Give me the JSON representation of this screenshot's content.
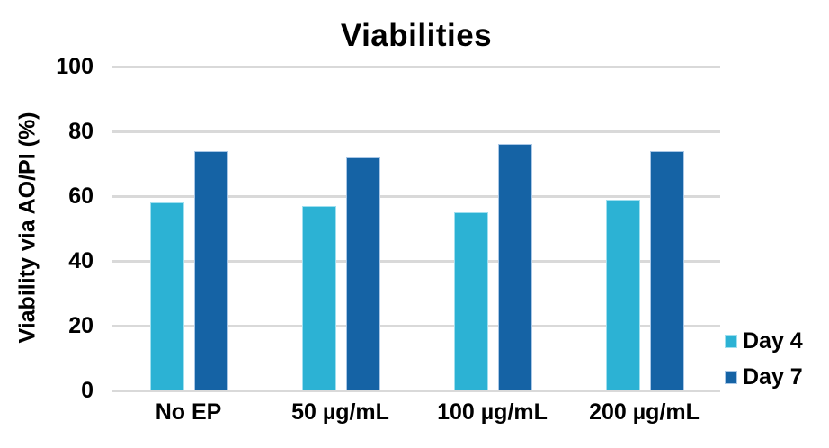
{
  "chart_data": {
    "type": "bar",
    "title": "Viabilities",
    "xlabel": "",
    "ylabel": "Viability via AO/PI (%)",
    "ylim": [
      0,
      100
    ],
    "yticks": [
      100,
      80,
      60,
      40,
      20,
      0
    ],
    "grid": "horizontal",
    "gridline_color": "#d9d9d9",
    "text_color": "#000000",
    "legend_position": "right",
    "categories": [
      "No EP",
      "50 µg/mL",
      "100 µg/mL",
      "200 µg/mL"
    ],
    "series": [
      {
        "name": "Day 4",
        "color": "#2cb2d4",
        "border_color": "#9fdfef",
        "values": [
          58,
          57,
          55,
          59
        ]
      },
      {
        "name": "Day 7",
        "color": "#1563a5",
        "border_color": "#a9c7e6",
        "values": [
          74,
          72,
          76,
          74
        ]
      }
    ]
  }
}
